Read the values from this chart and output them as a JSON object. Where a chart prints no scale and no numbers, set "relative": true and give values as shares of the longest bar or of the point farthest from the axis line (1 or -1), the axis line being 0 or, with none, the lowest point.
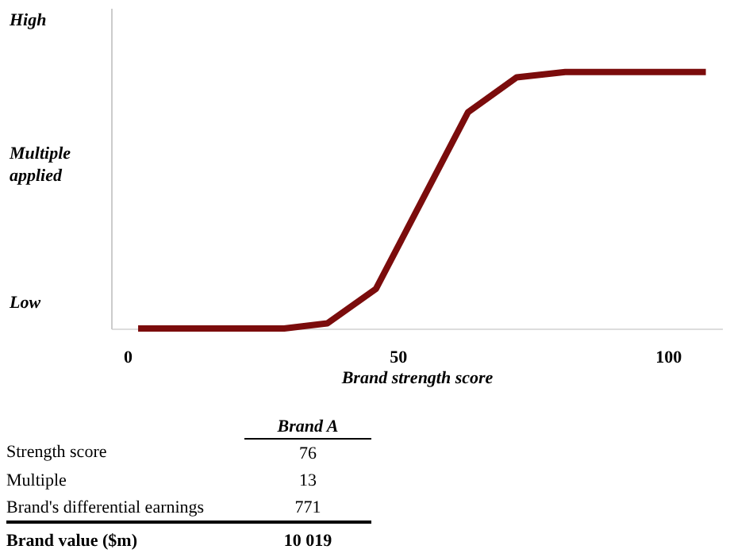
{
  "chart_data": {
    "type": "line",
    "relative": true,
    "xlabel": "Brand strength score",
    "ylabel": "Multiple applied",
    "x": [
      2,
      29,
      37,
      46,
      63,
      72,
      81,
      107
    ],
    "series": [
      {
        "color": "#7b0c0c",
        "values": [
          0,
          0,
          0.02,
          0.155,
          0.843,
          0.979,
          1,
          1
        ]
      }
    ],
    "xlim": [
      -3,
      110
    ],
    "xticks": [
      0,
      50,
      100
    ],
    "grid": false,
    "marker": "none",
    "line_style": "solid",
    "annotations": [
      "High",
      "Low",
      "Brand A",
      "Strength score",
      "76",
      "Multiple",
      "13",
      "Brand's differential earnings",
      "771",
      "Brand value ($m)",
      "10 019"
    ]
  }
}
